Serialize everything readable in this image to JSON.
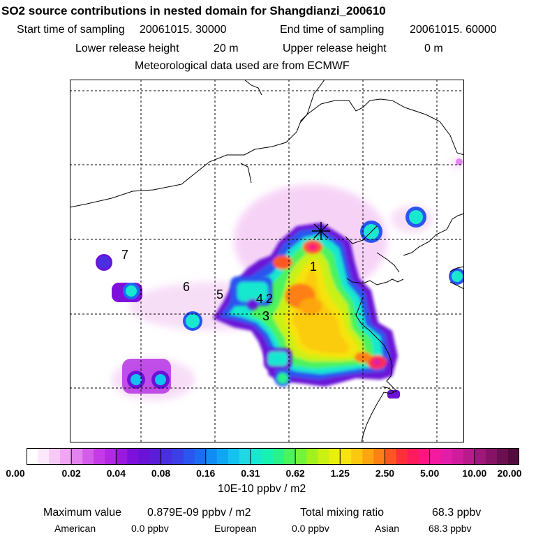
{
  "header": {
    "title": "SO2 source contributions in nested domain for Shangdianzi_200610",
    "start_label": "Start time of sampling",
    "start_value": "20061015. 30000",
    "end_label": "End time of sampling",
    "end_value": "20061015. 60000",
    "lower_label": "Lower release height",
    "lower_value": "20 m",
    "upper_label": "Upper release height",
    "upper_value": "0 m",
    "met_line": "Meteorological data used are from ECMWF"
  },
  "map": {
    "region_labels": [
      "1",
      "2",
      "3",
      "4",
      "5",
      "6",
      "7"
    ],
    "site_marker": "receptor-star"
  },
  "legend": {
    "ticks": [
      "0.00",
      "0.02",
      "0.04",
      "0.08",
      "0.16",
      "0.31",
      "0.62",
      "1.25",
      "2.50",
      "5.00",
      "10.00",
      "20.00"
    ],
    "colors": [
      "#ffffff",
      "#fde8fb",
      "#f7c9f5",
      "#f0a6f2",
      "#e383ef",
      "#d45cea",
      "#c53ae6",
      "#b228e3",
      "#9a18df",
      "#7d10db",
      "#6a12d8",
      "#5a1ed9",
      "#4a2fe0",
      "#3a3fe8",
      "#2a55ef",
      "#1c6cf3",
      "#118cf6",
      "#0fa6f4",
      "#13c2ef",
      "#1fd8e3",
      "#19e8cf",
      "#17f1b2",
      "#29f28a",
      "#4bf35d",
      "#73f339",
      "#a1f21d",
      "#caf113",
      "#e8ef0b",
      "#f6e310",
      "#fcc70f",
      "#fda50f",
      "#fe7f13",
      "#ff5521",
      "#ff2f3a",
      "#ff1b5b",
      "#ff1581",
      "#f41a9e",
      "#e21ea9",
      "#ce1c9d",
      "#b81a8c",
      "#a0177a",
      "#861366",
      "#6b0f50",
      "#520b3c"
    ],
    "unit": "10E-10 ppbv / m2"
  },
  "footer": {
    "max_label": "Maximum value",
    "max_value": "0.879E-09 ppbv / m2",
    "total_label": "Total mixing ratio",
    "total_value": "68.3 ppbv",
    "american_label": "American",
    "american_value": "0.0 ppbv",
    "european_label": "European",
    "european_value": "0.0 ppbv",
    "asian_label": "Asian",
    "asian_value": "68.3 ppbv"
  }
}
